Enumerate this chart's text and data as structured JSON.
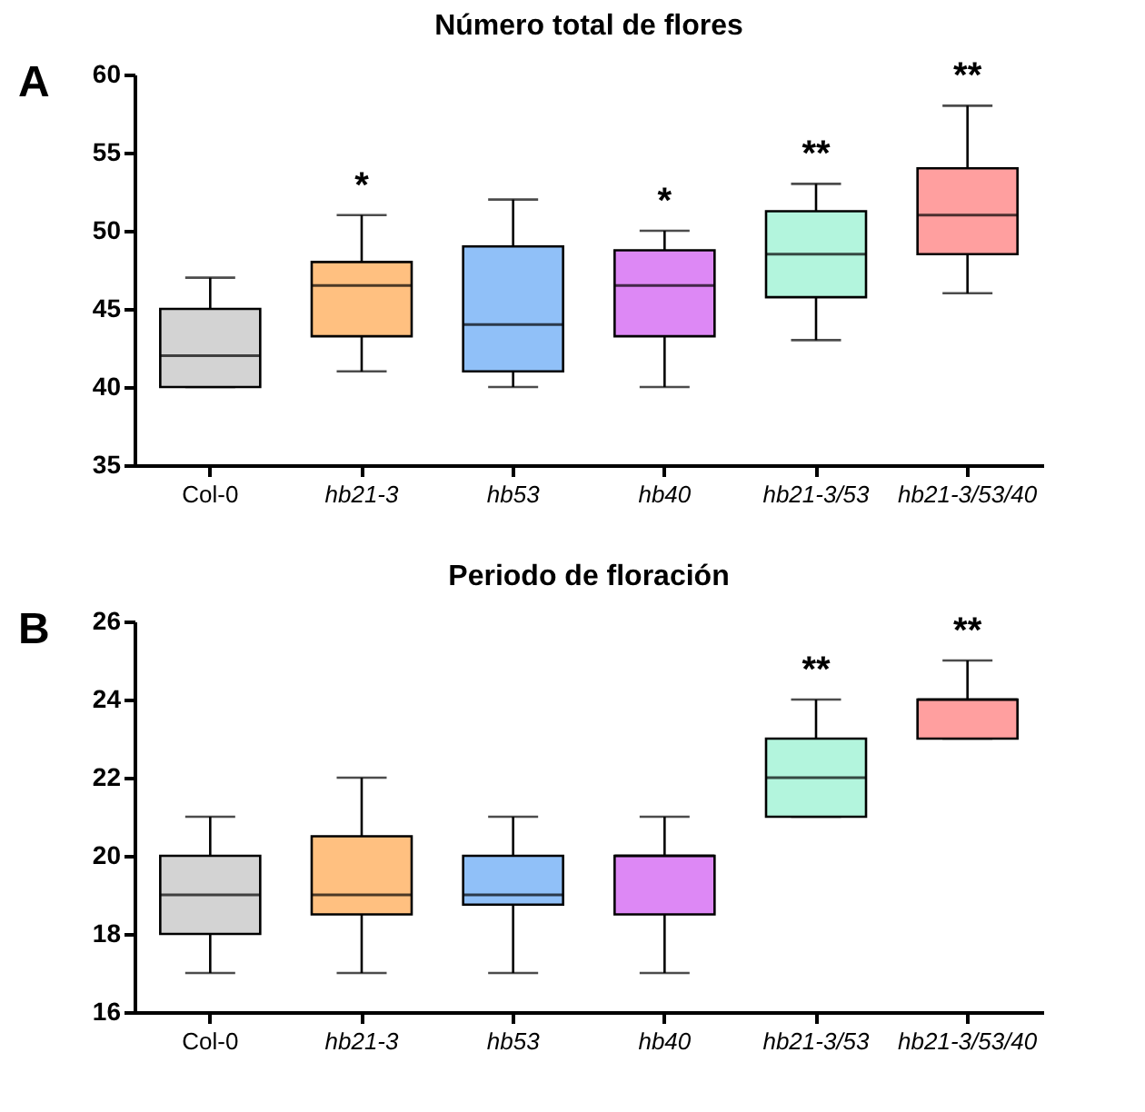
{
  "chart_data": [
    {
      "type": "box",
      "title": "Número total de flores",
      "categories": [
        "Col-0",
        "hb21-3",
        "hb53",
        "hb40",
        "hb21-3/53",
        "hb21-3/53/40"
      ],
      "colors": [
        "#d3d3d3",
        "#ffc080",
        "#90c0f8",
        "#dd88f5",
        "#b3f5dd",
        "#ff9f9f"
      ],
      "boxes": [
        {
          "low": 40,
          "q1": 40,
          "median": 42,
          "q3": 45,
          "high": 47
        },
        {
          "low": 41,
          "q1": 43.25,
          "median": 46.5,
          "q3": 48,
          "high": 51
        },
        {
          "low": 40,
          "q1": 41,
          "median": 44,
          "q3": 49,
          "high": 52
        },
        {
          "low": 40,
          "q1": 43.25,
          "median": 46.5,
          "q3": 48.75,
          "high": 50
        },
        {
          "low": 43,
          "q1": 45.75,
          "median": 48.5,
          "q3": 51.25,
          "high": 53
        },
        {
          "low": 46,
          "q1": 48.5,
          "median": 51,
          "q3": 54,
          "high": 58
        }
      ],
      "ylim": [
        35,
        60
      ],
      "yticks": [
        35,
        40,
        45,
        50,
        55,
        60
      ],
      "value_labels": [
        null,
        "*",
        null,
        "*",
        "**",
        "**"
      ],
      "annotations": [
        "A"
      ]
    },
    {
      "type": "box",
      "title": "Periodo de floración",
      "categories": [
        "Col-0",
        "hb21-3",
        "hb53",
        "hb40",
        "hb21-3/53",
        "hb21-3/53/40"
      ],
      "colors": [
        "#d3d3d3",
        "#ffc080",
        "#90c0f8",
        "#dd88f5",
        "#b3f5dd",
        "#ff9f9f"
      ],
      "boxes": [
        {
          "low": 17,
          "q1": 18,
          "median": 19,
          "q3": 20,
          "high": 21
        },
        {
          "low": 17,
          "q1": 18.5,
          "median": 19,
          "q3": 20.5,
          "high": 22
        },
        {
          "low": 17,
          "q1": 18.75,
          "median": 19,
          "q3": 20,
          "high": 21
        },
        {
          "low": 17,
          "q1": 18.5,
          "median": 20,
          "q3": 20,
          "high": 21
        },
        {
          "low": 21,
          "q1": 21,
          "median": 22,
          "q3": 23,
          "high": 24
        },
        {
          "low": 23,
          "q1": 23,
          "median": 24,
          "q3": 24,
          "high": 25
        }
      ],
      "ylim": [
        16,
        26
      ],
      "yticks": [
        16,
        18,
        20,
        22,
        24,
        26
      ],
      "value_labels": [
        null,
        null,
        null,
        null,
        "**",
        "**"
      ],
      "annotations": [
        "B"
      ]
    }
  ]
}
